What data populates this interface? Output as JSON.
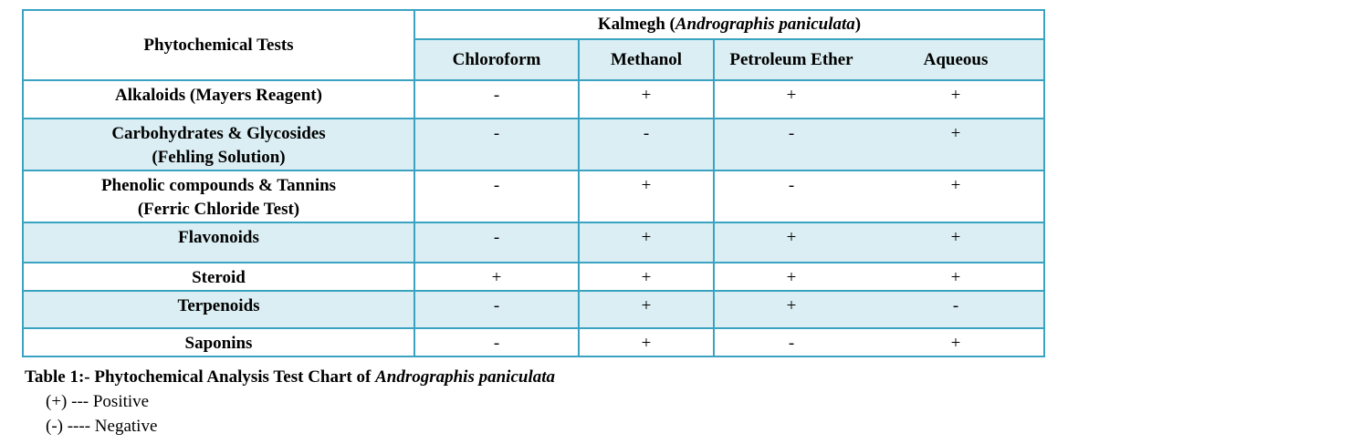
{
  "table": {
    "header": {
      "tests": "Phytochemical Tests",
      "plant_prefix": "Kalmegh (",
      "plant_italic": "Andrographis paniculata",
      "plant_suffix": ")",
      "solvents": [
        "Chloroform",
        "Methanol",
        "Petroleum Ether",
        "Aqueous"
      ]
    },
    "rows": [
      {
        "test": [
          "Alkaloids (Mayers Reagent)"
        ],
        "values": [
          "-",
          "+",
          "+",
          "+"
        ]
      },
      {
        "test": [
          "Carbohydrates & Glycosides",
          "(Fehling Solution)"
        ],
        "values": [
          "-",
          "-",
          "-",
          "+"
        ]
      },
      {
        "test": [
          "Phenolic compounds & Tannins",
          "(Ferric Chloride Test)"
        ],
        "values": [
          "-",
          "+",
          "-",
          "+"
        ]
      },
      {
        "test": [
          "Flavonoids"
        ],
        "values": [
          "-",
          "+",
          "+",
          "+"
        ]
      },
      {
        "test": [
          "Steroid"
        ],
        "values": [
          "+",
          "+",
          "+",
          "+"
        ]
      },
      {
        "test": [
          "Terpenoids"
        ],
        "values": [
          "-",
          "+",
          "+",
          "-"
        ]
      },
      {
        "test": [
          "Saponins"
        ],
        "values": [
          "-",
          "+",
          "-",
          "+"
        ]
      }
    ]
  },
  "caption": {
    "text": "Table 1:- Phytochemical Analysis Test Chart of ",
    "italic": "Andrographis paniculata"
  },
  "legend": [
    {
      "symbol": "(+)",
      "text": "--- Positive"
    },
    {
      "symbol": "(-)",
      "text": "---- Negative"
    }
  ]
}
